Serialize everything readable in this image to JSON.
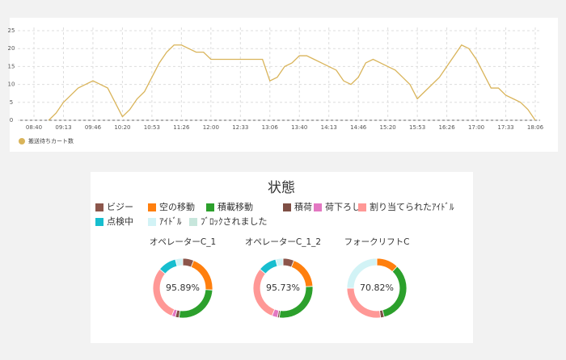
{
  "chart_data": [
    {
      "type": "line",
      "categories": [
        "08:40",
        null,
        null,
        null,
        "09:13",
        null,
        null,
        null,
        "09:46",
        null,
        null,
        null,
        "10:20",
        null,
        null,
        null,
        "10:53",
        null,
        null,
        null,
        "11:26",
        null,
        null,
        null,
        "12:00",
        null,
        null,
        null,
        "12:33",
        null,
        null,
        null,
        "13:06",
        null,
        null,
        null,
        "13:40",
        null,
        null,
        null,
        "14:13",
        null,
        null,
        null,
        "14:46",
        null,
        null,
        null,
        "15:20",
        null,
        null,
        null,
        "15:53",
        null,
        null,
        null,
        "16:26",
        null,
        null,
        null,
        "17:00",
        null,
        null,
        null,
        "17:33",
        null,
        null,
        null,
        "18:06"
      ],
      "series": [
        {
          "name": "搬送待ちカート数",
          "color": "#d9b45a",
          "values": [
            null,
            null,
            0,
            2,
            5,
            7,
            9,
            10,
            11,
            10,
            9,
            5,
            1,
            3,
            6,
            8,
            12,
            16,
            19,
            21,
            21,
            20,
            19,
            19,
            17,
            17,
            17,
            17,
            17,
            17,
            17,
            17,
            11,
            12,
            15,
            16,
            18,
            18,
            17,
            16,
            15,
            14,
            11,
            10,
            12,
            16,
            17,
            16,
            15,
            14,
            12,
            10,
            6,
            8,
            10,
            12,
            15,
            18,
            21,
            20,
            17,
            13,
            9,
            9,
            7,
            6,
            5,
            3,
            0
          ]
        }
      ],
      "ylim": [
        0,
        25
      ],
      "yticks": [
        0,
        5,
        10,
        15,
        20,
        25
      ],
      "grid": true,
      "legend": "bottom-left"
    },
    {
      "type": "donut",
      "title": "状態",
      "legend": [
        {
          "name": "ビジー",
          "color": "#8c564b"
        },
        {
          "name": "空の移動",
          "color": "#ff7f0e"
        },
        {
          "name": "積載移動",
          "color": "#2ca02c"
        },
        {
          "name": "積荷",
          "color": "#7f4f45"
        },
        {
          "name": "荷下ろし",
          "color": "#e377c2"
        },
        {
          "name": "割り当てられたｱｲﾄﾞﾙ",
          "color": "#ff9896"
        },
        {
          "name": "点検中",
          "color": "#17becf"
        },
        {
          "name": "ｱｲﾄﾞﾙ",
          "color": "#d2f3f6"
        },
        {
          "name": "ﾌﾞﾛｯｸされました",
          "color": "#c7e6dc"
        }
      ],
      "charts": [
        {
          "title": "オペレーターC_1",
          "center_label": "95.89%",
          "values": [
            6,
            20,
            26,
            2,
            2,
            30,
            10,
            4,
            0
          ]
        },
        {
          "title": "オペレーターC_1_2",
          "center_label": "95.73%",
          "values": [
            6,
            18,
            28,
            1,
            3,
            30,
            10,
            4,
            0
          ]
        },
        {
          "title": "フォークリフトC",
          "center_label": "70.82%",
          "values": [
            0,
            12,
            34,
            2,
            0,
            27,
            0,
            25,
            0
          ]
        }
      ]
    }
  ]
}
